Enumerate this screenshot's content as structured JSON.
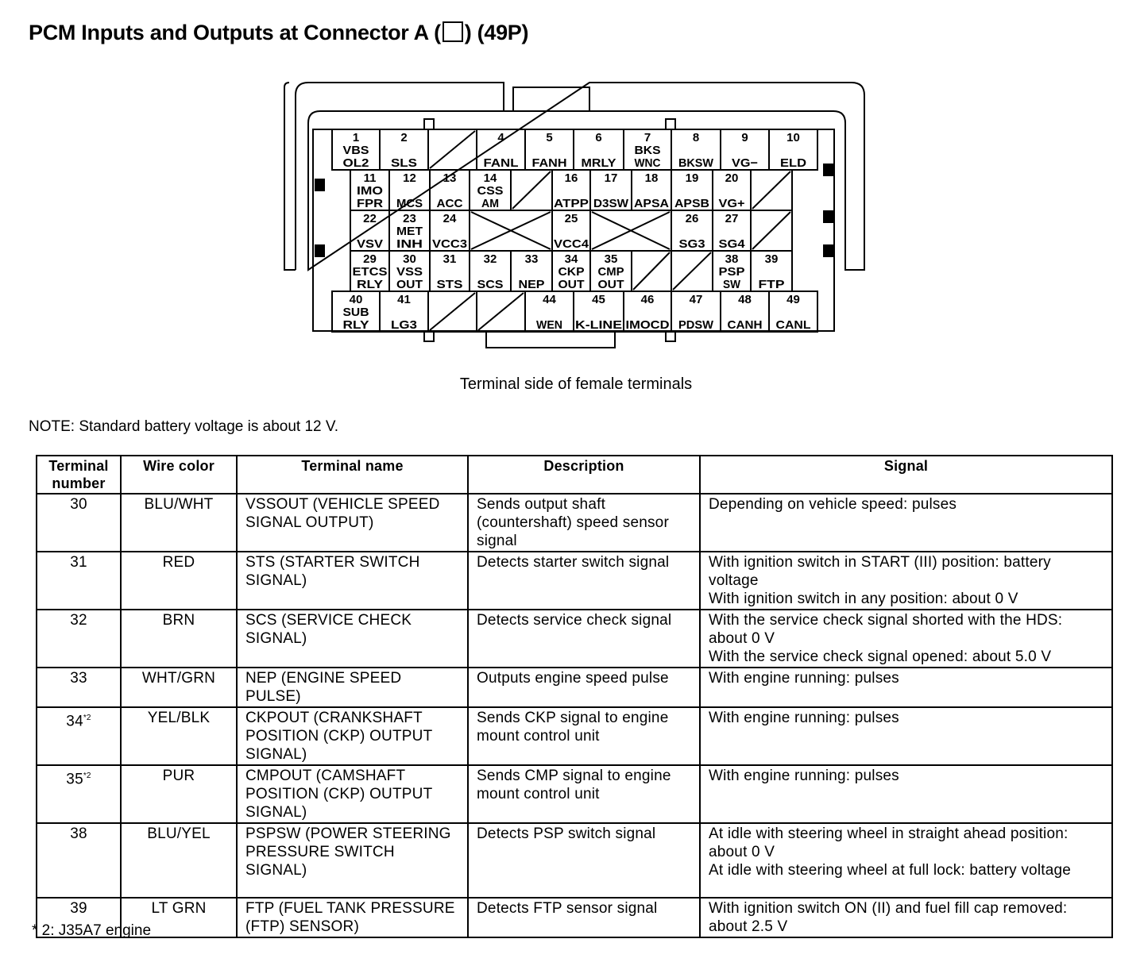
{
  "title_prefix": "PCM Inputs and Outputs at Connector A (",
  "title_suffix": ") (49P)",
  "connector": {
    "caption": "Terminal side of female terminals",
    "terminals": [
      {
        "n": "1",
        "l": [
          "VBS",
          "OL2"
        ]
      },
      {
        "n": "2",
        "l": [
          "SLS"
        ]
      },
      {
        "n": "4",
        "l": [
          "FANL"
        ]
      },
      {
        "n": "5",
        "l": [
          "FANH"
        ]
      },
      {
        "n": "6",
        "l": [
          "MRLY"
        ]
      },
      {
        "n": "7",
        "l": [
          "BKS",
          "WNC"
        ]
      },
      {
        "n": "8",
        "l": [
          "BKSW"
        ]
      },
      {
        "n": "9",
        "l": [
          "VG−"
        ]
      },
      {
        "n": "10",
        "l": [
          "ELD"
        ]
      },
      {
        "n": "11",
        "l": [
          "IMO",
          "FPR"
        ]
      },
      {
        "n": "12",
        "l": [
          "MCS"
        ]
      },
      {
        "n": "13",
        "l": [
          "ACC"
        ]
      },
      {
        "n": "14",
        "l": [
          "CSS",
          "AM"
        ]
      },
      {
        "n": "16",
        "l": [
          "ATPP"
        ]
      },
      {
        "n": "17",
        "l": [
          "D3SW"
        ]
      },
      {
        "n": "18",
        "l": [
          "APSA"
        ]
      },
      {
        "n": "19",
        "l": [
          "APSB"
        ]
      },
      {
        "n": "20",
        "l": [
          "VG+"
        ]
      },
      {
        "n": "22",
        "l": [
          "VSV"
        ]
      },
      {
        "n": "23",
        "l": [
          "MET",
          "INH"
        ]
      },
      {
        "n": "24",
        "l": [
          "VCC3"
        ]
      },
      {
        "n": "25",
        "l": [
          "VCC4"
        ]
      },
      {
        "n": "26",
        "l": [
          "SG3"
        ]
      },
      {
        "n": "27",
        "l": [
          "SG4"
        ]
      },
      {
        "n": "29",
        "l": [
          "ETCS",
          "RLY"
        ]
      },
      {
        "n": "30",
        "l": [
          "VSS",
          "OUT"
        ]
      },
      {
        "n": "31",
        "l": [
          "STS"
        ]
      },
      {
        "n": "32",
        "l": [
          "SCS"
        ]
      },
      {
        "n": "33",
        "l": [
          "NEP"
        ]
      },
      {
        "n": "34",
        "l": [
          "CKP",
          "OUT"
        ]
      },
      {
        "n": "35",
        "l": [
          "CMP",
          "OUT"
        ]
      },
      {
        "n": "38",
        "l": [
          "PSP",
          "SW"
        ]
      },
      {
        "n": "39",
        "l": [
          "FTP"
        ]
      },
      {
        "n": "40",
        "l": [
          "SUB",
          "RLY"
        ]
      },
      {
        "n": "41",
        "l": [
          "LG3"
        ]
      },
      {
        "n": "44",
        "l": [
          "WEN"
        ]
      },
      {
        "n": "45",
        "l": [
          "K-LINE"
        ]
      },
      {
        "n": "46",
        "l": [
          "IMOCD"
        ]
      },
      {
        "n": "47",
        "l": [
          "PDSW"
        ]
      },
      {
        "n": "48",
        "l": [
          "CANH"
        ]
      },
      {
        "n": "49",
        "l": [
          "CANL"
        ]
      }
    ]
  },
  "note": "NOTE: Standard battery voltage is about 12 V.",
  "table": {
    "headers": [
      "Terminal number",
      "Wire color",
      "Terminal name",
      "Description",
      "Signal"
    ],
    "rows": [
      {
        "num": "30",
        "sup": "",
        "color": "BLU/WHT",
        "name": "VSSOUT (VEHICLE SPEED SIGNAL OUTPUT)",
        "desc": "Sends output shaft (countershaft) speed sensor signal",
        "signal": [
          "Depending on vehicle speed: pulses"
        ]
      },
      {
        "num": "31",
        "sup": "",
        "color": "RED",
        "name": "STS (STARTER SWITCH SIGNAL)",
        "desc": "Detects starter switch signal",
        "signal": [
          "With ignition switch in START (III) position: battery voltage",
          "With ignition switch in any position: about 0 V"
        ]
      },
      {
        "num": "32",
        "sup": "",
        "color": "BRN",
        "name": "SCS (SERVICE CHECK SIGNAL)",
        "desc": "Detects service check signal",
        "signal": [
          "With the service check signal shorted with the HDS: about 0 V",
          "With the service check signal opened: about 5.0 V"
        ]
      },
      {
        "num": "33",
        "sup": "",
        "color": "WHT/GRN",
        "name": "NEP (ENGINE SPEED PULSE)",
        "desc": "Outputs engine speed pulse",
        "signal": [
          "With engine running: pulses"
        ]
      },
      {
        "num": "34",
        "sup": "*2",
        "color": "YEL/BLK",
        "name": "CKPOUT (CRANKSHAFT POSITION (CKP) OUTPUT SIGNAL)",
        "desc": "Sends CKP signal to engine mount control unit",
        "signal": [
          "With engine running: pulses"
        ]
      },
      {
        "num": "35",
        "sup": "*2",
        "color": "PUR",
        "name": "CMPOUT (CAMSHAFT POSITION (CKP) OUTPUT SIGNAL)",
        "desc": "Sends CMP signal to engine mount control unit",
        "signal": [
          "With engine running: pulses"
        ]
      },
      {
        "num": "38",
        "sup": "",
        "color": "BLU/YEL",
        "name": "PSPSW (POWER STEERING PRESSURE SWITCH SIGNAL)",
        "desc": "Detects PSP switch signal",
        "signal": [
          "At idle with steering wheel in straight ahead position: about 0 V",
          "At idle with steering wheel at full lock: battery voltage"
        ]
      },
      {
        "num": "39",
        "sup": "",
        "color": "LT GRN",
        "name": "FTP (FUEL TANK PRESSURE (FTP) SENSOR)",
        "desc": "Detects FTP sensor signal",
        "signal": [
          "With ignition switch ON (II) and fuel fill cap removed: about 2.5 V"
        ]
      }
    ]
  },
  "footnote": "* 2: J35A7 engine"
}
